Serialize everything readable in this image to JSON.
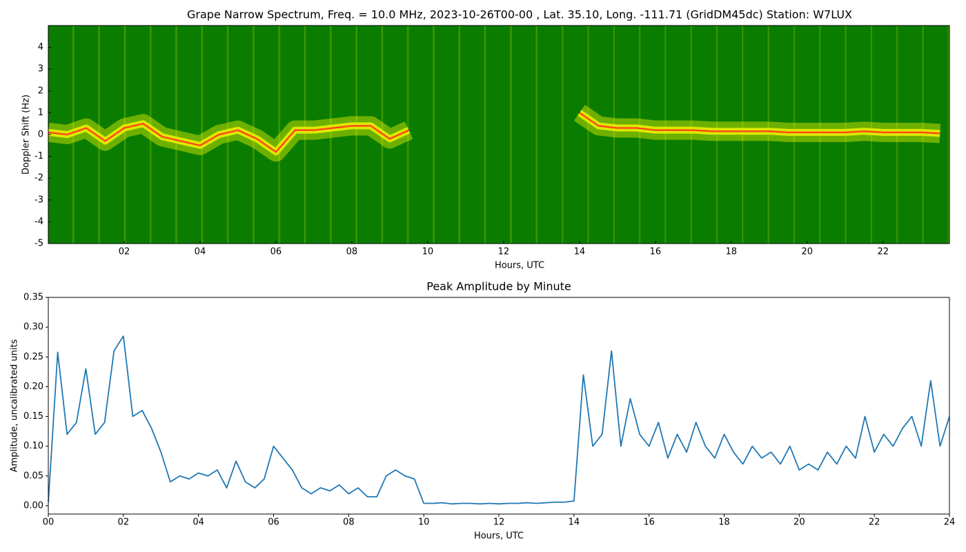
{
  "chart_data": [
    {
      "type": "spectrogram",
      "title": "Grape Narrow Spectrum, Freq. = 10.0 MHz, 2023-10-26T00-00 , Lat.  35.10, Long. -111.71 (GridDM45dc) Station: W7LUX",
      "xlabel": "Hours, UTC",
      "ylabel": "Doppler Shift (Hz)",
      "x": [
        0,
        0.5,
        1,
        1.5,
        2,
        2.5,
        3,
        3.5,
        4,
        4.5,
        5,
        5.5,
        6,
        6.5,
        7,
        7.5,
        8,
        8.5,
        9,
        9.5,
        10,
        10.5,
        11,
        11.5,
        12,
        12.5,
        13,
        13.5,
        14,
        14.5,
        15,
        15.5,
        16,
        16.5,
        17,
        17.5,
        18,
        18.5,
        19,
        19.5,
        20,
        20.5,
        21,
        21.5,
        22,
        22.5,
        23,
        23.5
      ],
      "values": [
        0.1,
        0.0,
        0.3,
        -0.3,
        0.3,
        0.5,
        -0.1,
        -0.3,
        -0.5,
        0.0,
        0.2,
        -0.2,
        -0.8,
        0.2,
        0.2,
        0.3,
        0.4,
        0.4,
        -0.2,
        0.2,
        null,
        null,
        null,
        null,
        null,
        null,
        null,
        null,
        1.0,
        0.4,
        0.3,
        0.3,
        0.2,
        0.2,
        0.2,
        0.15,
        0.15,
        0.15,
        0.15,
        0.1,
        0.1,
        0.1,
        0.1,
        0.15,
        0.1,
        0.1,
        0.1,
        0.05
      ],
      "background_color": "#0a7d00",
      "band_color": "#e8f000",
      "color": "#ff4a1a",
      "xlim": [
        0,
        23.75
      ],
      "ylim": [
        -5,
        5
      ],
      "xticks": [
        {
          "value": 2,
          "label": "02"
        },
        {
          "value": 4,
          "label": "04"
        },
        {
          "value": 6,
          "label": "06"
        },
        {
          "value": 8,
          "label": "08"
        },
        {
          "value": 10,
          "label": "10"
        },
        {
          "value": 12,
          "label": "12"
        },
        {
          "value": 14,
          "label": "14"
        },
        {
          "value": 16,
          "label": "16"
        },
        {
          "value": 18,
          "label": "18"
        },
        {
          "value": 20,
          "label": "20"
        },
        {
          "value": 22,
          "label": "22"
        }
      ],
      "yticks": [
        -5,
        -4,
        -3,
        -2,
        -1,
        0,
        1,
        2,
        3,
        4
      ]
    },
    {
      "type": "line",
      "title": "Peak Amplitude by Minute",
      "xlabel": "Hours, UTC",
      "ylabel": "Amplitude, uncalibrated units",
      "x": [
        0,
        0.25,
        0.5,
        0.75,
        1,
        1.25,
        1.5,
        1.75,
        2,
        2.25,
        2.5,
        2.75,
        3,
        3.25,
        3.5,
        3.75,
        4,
        4.25,
        4.5,
        4.75,
        5,
        5.25,
        5.5,
        5.75,
        6,
        6.25,
        6.5,
        6.75,
        7,
        7.25,
        7.5,
        7.75,
        8,
        8.25,
        8.5,
        8.75,
        9,
        9.25,
        9.5,
        9.75,
        10,
        10.25,
        10.5,
        10.75,
        11,
        11.25,
        11.5,
        11.75,
        12,
        12.25,
        12.5,
        12.75,
        13,
        13.25,
        13.5,
        13.75,
        14,
        14.25,
        14.5,
        14.75,
        15,
        15.25,
        15.5,
        15.75,
        16,
        16.25,
        16.5,
        16.75,
        17,
        17.25,
        17.5,
        17.75,
        18,
        18.25,
        18.5,
        18.75,
        19,
        19.25,
        19.5,
        19.75,
        20,
        20.25,
        20.5,
        20.75,
        21,
        21.25,
        21.5,
        21.75,
        22,
        22.25,
        22.5,
        22.75,
        23,
        23.25,
        23.5,
        23.75,
        24
      ],
      "values": [
        0.005,
        0.258,
        0.12,
        0.14,
        0.23,
        0.12,
        0.14,
        0.26,
        0.285,
        0.15,
        0.16,
        0.13,
        0.09,
        0.04,
        0.05,
        0.045,
        0.055,
        0.05,
        0.06,
        0.03,
        0.075,
        0.04,
        0.03,
        0.045,
        0.1,
        0.08,
        0.06,
        0.03,
        0.02,
        0.03,
        0.025,
        0.035,
        0.02,
        0.03,
        0.015,
        0.015,
        0.05,
        0.06,
        0.05,
        0.045,
        0.004,
        0.004,
        0.005,
        0.003,
        0.004,
        0.004,
        0.003,
        0.004,
        0.003,
        0.004,
        0.004,
        0.005,
        0.004,
        0.005,
        0.006,
        0.006,
        0.008,
        0.22,
        0.1,
        0.12,
        0.26,
        0.1,
        0.18,
        0.12,
        0.1,
        0.14,
        0.08,
        0.12,
        0.09,
        0.14,
        0.1,
        0.08,
        0.12,
        0.09,
        0.07,
        0.1,
        0.08,
        0.09,
        0.07,
        0.1,
        0.06,
        0.07,
        0.06,
        0.09,
        0.07,
        0.1,
        0.08,
        0.15,
        0.09,
        0.12,
        0.1,
        0.13,
        0.15,
        0.1,
        0.21,
        0.1,
        0.15
      ],
      "color": "#1f77b4",
      "xlim": [
        0,
        24
      ],
      "ylim": [
        -0.014,
        0.35
      ],
      "xticks": [
        {
          "value": 0,
          "label": "00"
        },
        {
          "value": 2,
          "label": "02"
        },
        {
          "value": 4,
          "label": "04"
        },
        {
          "value": 6,
          "label": "06"
        },
        {
          "value": 8,
          "label": "08"
        },
        {
          "value": 10,
          "label": "10"
        },
        {
          "value": 12,
          "label": "12"
        },
        {
          "value": 14,
          "label": "14"
        },
        {
          "value": 16,
          "label": "16"
        },
        {
          "value": 18,
          "label": "18"
        },
        {
          "value": 20,
          "label": "20"
        },
        {
          "value": 22,
          "label": "22"
        },
        {
          "value": 24,
          "label": "24"
        }
      ],
      "yticks": [
        {
          "value": 0,
          "label": "0.00"
        },
        0.05,
        {
          "value": 0.1,
          "label": "0.10"
        },
        0.15,
        {
          "value": 0.2,
          "label": "0.20"
        },
        0.25,
        {
          "value": 0.3,
          "label": "0.30"
        },
        0.35
      ]
    }
  ]
}
